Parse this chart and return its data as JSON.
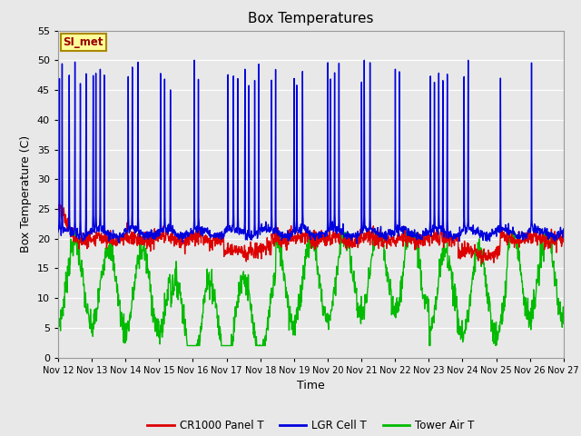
{
  "title": "Box Temperatures",
  "xlabel": "Time",
  "ylabel": "Box Temperature (C)",
  "ylim": [
    0,
    55
  ],
  "bg_color": "#e8e8e8",
  "grid_color": "#ffffff",
  "annotation_label": "SI_met",
  "annotation_bg": "#ffff99",
  "annotation_border": "#aa8800",
  "x_tick_labels": [
    "Nov 12",
    "Nov 13",
    "Nov 14",
    "Nov 15",
    "Nov 16",
    "Nov 17",
    "Nov 18",
    "Nov 19",
    "Nov 20",
    "Nov 21",
    "Nov 22",
    "Nov 23",
    "Nov 24",
    "Nov 25",
    "Nov 26",
    "Nov 27"
  ],
  "legend_entries": [
    "CR1000 Panel T",
    "LGR Cell T",
    "Tower Air T"
  ],
  "legend_colors": [
    "#dd0000",
    "#0000dd",
    "#00bb00"
  ],
  "line_width": 1.0
}
